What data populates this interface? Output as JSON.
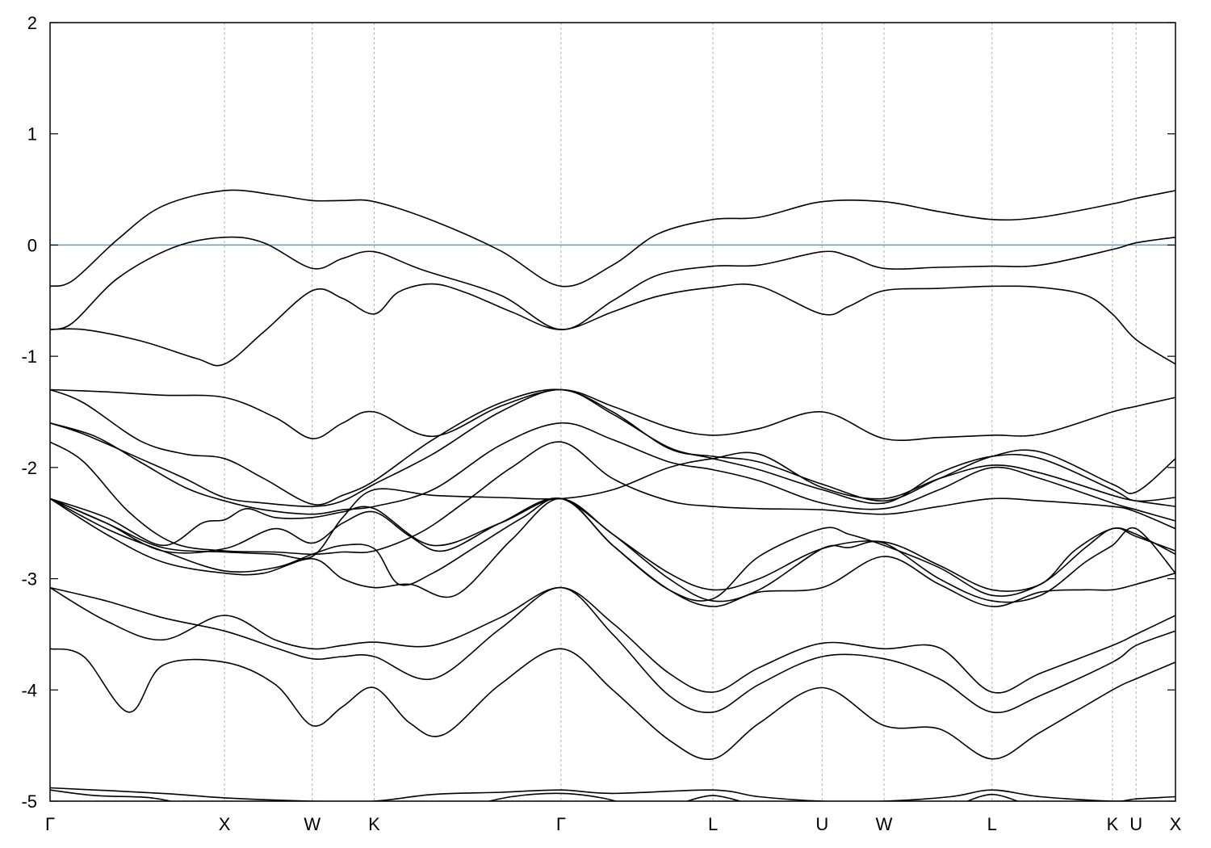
{
  "chart_data": {
    "type": "line",
    "title": "",
    "xlabel": "",
    "ylabel": "",
    "ylim": [
      -5,
      2
    ],
    "yticks": [
      -5,
      -4,
      -3,
      -2,
      -1,
      0,
      1,
      2
    ],
    "ytick_labels": [
      "-5",
      "-4",
      "-3",
      "-2",
      "-1",
      "0",
      "1",
      "2"
    ],
    "xlim": [
      0,
      10
    ],
    "kpoints": [
      {
        "label": "Γ",
        "x": 0.0
      },
      {
        "label": "X",
        "x": 1.55
      },
      {
        "label": "W",
        "x": 2.33
      },
      {
        "label": "K",
        "x": 2.88
      },
      {
        "label": "Γ",
        "x": 4.54
      },
      {
        "label": "L",
        "x": 5.89
      },
      {
        "label": "U",
        "x": 6.86
      },
      {
        "label": "W",
        "x": 7.41
      },
      {
        "label": "L",
        "x": 8.37
      },
      {
        "label": "K",
        "x": 9.44
      },
      {
        "label": "U",
        "x": 9.65
      },
      {
        "label": "X",
        "x": 10.0
      }
    ],
    "reference_line": {
      "y": 0,
      "color": "#4aa8c8"
    },
    "grid": "dashed vertical lines at high-symmetry points",
    "series": [
      {
        "x": [
          0,
          0.2,
          0.6,
          1.0,
          1.55,
          2.0,
          2.33,
          2.6,
          2.88,
          3.4,
          4.0,
          4.54,
          5.0,
          5.4,
          5.89,
          6.3,
          6.86,
          7.41,
          7.9,
          8.37,
          8.8,
          9.44,
          9.65,
          10.0
        ],
        "y": [
          -0.37,
          -0.32,
          0.05,
          0.35,
          0.49,
          0.45,
          0.4,
          0.4,
          0.39,
          0.22,
          -0.05,
          -0.37,
          -0.18,
          0.1,
          0.23,
          0.25,
          0.39,
          0.39,
          0.3,
          0.23,
          0.25,
          0.37,
          0.42,
          0.49
        ]
      },
      {
        "x": [
          0,
          0.2,
          0.6,
          1.1,
          1.55,
          1.9,
          2.33,
          2.6,
          2.88,
          3.3,
          4.0,
          4.54,
          5.0,
          5.4,
          5.89,
          6.3,
          6.86,
          7.1,
          7.41,
          7.9,
          8.37,
          8.8,
          9.44,
          9.65,
          10.0
        ],
        "y": [
          -0.76,
          -0.7,
          -0.3,
          -0.02,
          0.07,
          0.02,
          -0.21,
          -0.12,
          -0.06,
          -0.22,
          -0.45,
          -0.76,
          -0.5,
          -0.27,
          -0.19,
          -0.18,
          -0.06,
          -0.1,
          -0.21,
          -0.2,
          -0.19,
          -0.18,
          -0.04,
          0.02,
          0.07
        ]
      },
      {
        "x": [
          0,
          0.3,
          0.8,
          1.3,
          1.55,
          1.9,
          2.33,
          2.6,
          2.88,
          3.1,
          3.4,
          3.7,
          4.1,
          4.54,
          5.0,
          5.4,
          5.89,
          6.3,
          6.86,
          7.1,
          7.41,
          7.9,
          8.37,
          8.8,
          9.2,
          9.44,
          9.65,
          10.0
        ],
        "y": [
          -0.76,
          -0.76,
          -0.86,
          -1.02,
          -1.07,
          -0.78,
          -0.41,
          -0.48,
          -0.62,
          -0.42,
          -0.35,
          -0.43,
          -0.6,
          -0.76,
          -0.6,
          -0.46,
          -0.38,
          -0.37,
          -0.62,
          -0.55,
          -0.41,
          -0.39,
          -0.37,
          -0.38,
          -0.45,
          -0.62,
          -0.85,
          -1.07
        ]
      },
      {
        "x": [
          0,
          0.5,
          1.0,
          1.55,
          2.0,
          2.33,
          2.6,
          2.88,
          3.4,
          4.0,
          4.54,
          5.0,
          5.5,
          5.89,
          6.3,
          6.86,
          7.41,
          7.9,
          8.37,
          8.8,
          9.44,
          9.65,
          10.0
        ],
        "y": [
          -1.3,
          -1.32,
          -1.35,
          -1.37,
          -1.55,
          -1.74,
          -1.6,
          -1.5,
          -1.72,
          -1.45,
          -1.3,
          -1.45,
          -1.64,
          -1.71,
          -1.65,
          -1.5,
          -1.74,
          -1.73,
          -1.71,
          -1.7,
          -1.5,
          -1.45,
          -1.37
        ]
      },
      {
        "x": [
          0,
          0.3,
          0.8,
          1.2,
          1.55,
          1.9,
          2.33,
          2.6,
          2.88,
          3.4,
          4.0,
          4.54,
          5.0,
          5.5,
          5.89,
          6.3,
          6.86,
          7.41,
          7.9,
          8.37,
          8.8,
          9.44,
          9.65,
          10.0
        ],
        "y": [
          -1.3,
          -1.42,
          -1.76,
          -1.88,
          -1.92,
          -2.1,
          -2.33,
          -2.25,
          -2.12,
          -1.75,
          -1.42,
          -1.3,
          -1.5,
          -1.83,
          -1.9,
          -1.95,
          -2.15,
          -2.3,
          -2.1,
          -1.9,
          -1.86,
          -2.15,
          -2.22,
          -1.92
        ]
      },
      {
        "x": [
          0,
          0.3,
          0.8,
          1.2,
          1.55,
          1.9,
          2.33,
          2.6,
          2.88,
          3.4,
          4.0,
          4.54,
          5.0,
          5.5,
          5.89,
          6.3,
          6.86,
          7.41,
          7.9,
          8.37,
          8.8,
          9.44,
          9.65,
          10.0
        ],
        "y": [
          -1.6,
          -1.7,
          -1.92,
          -2.1,
          -2.27,
          -2.32,
          -2.35,
          -2.3,
          -2.15,
          -1.88,
          -1.5,
          -1.3,
          -1.52,
          -1.82,
          -1.92,
          -2.02,
          -2.2,
          -2.32,
          -2.05,
          -1.9,
          -1.92,
          -2.2,
          -2.3,
          -2.27
        ]
      },
      {
        "x": [
          0,
          0.4,
          0.8,
          1.2,
          1.55,
          1.9,
          2.33,
          2.6,
          2.88,
          3.4,
          4.0,
          4.54,
          5.0,
          5.5,
          5.89,
          6.3,
          6.86,
          7.41,
          7.9,
          8.37,
          8.8,
          9.44,
          9.65,
          10.0
        ],
        "y": [
          -1.6,
          -1.72,
          -1.95,
          -2.18,
          -2.3,
          -2.38,
          -2.42,
          -2.38,
          -2.35,
          -2.2,
          -1.8,
          -1.6,
          -1.75,
          -1.95,
          -2.02,
          -2.12,
          -2.32,
          -2.37,
          -2.2,
          -2.0,
          -2.1,
          -2.32,
          -2.38,
          -2.48
        ]
      },
      {
        "x": [
          0,
          0.3,
          0.7,
          1.1,
          1.55,
          2.0,
          2.33,
          2.6,
          2.88,
          3.3,
          3.7,
          4.1,
          4.54,
          5.0,
          5.5,
          5.89,
          6.3,
          6.86,
          7.41,
          7.9,
          8.37,
          8.8,
          9.44,
          9.65,
          10.0
        ],
        "y": [
          -1.77,
          -1.95,
          -2.4,
          -2.68,
          -2.75,
          -2.76,
          -2.78,
          -2.76,
          -2.75,
          -2.58,
          -2.3,
          -2.0,
          -1.77,
          -2.1,
          -2.3,
          -2.35,
          -2.37,
          -2.38,
          -2.42,
          -2.35,
          -2.28,
          -2.3,
          -2.35,
          -2.4,
          -2.55
        ]
      },
      {
        "x": [
          0,
          0.5,
          1.0,
          1.55,
          2.0,
          2.33,
          2.6,
          2.88,
          3.4,
          4.0,
          4.54,
          5.0,
          5.5,
          5.89,
          6.3,
          6.86,
          7.41,
          7.9,
          8.37,
          8.8,
          9.44,
          9.65,
          10.0
        ],
        "y": [
          -2.28,
          -2.5,
          -2.72,
          -2.76,
          -2.78,
          -2.8,
          -2.45,
          -2.2,
          -2.25,
          -2.27,
          -2.28,
          -2.2,
          -2.0,
          -1.92,
          -1.88,
          -2.18,
          -2.28,
          -2.1,
          -1.98,
          -2.05,
          -2.25,
          -2.3,
          -2.35
        ]
      },
      {
        "x": [
          0,
          0.5,
          1.0,
          1.35,
          1.55,
          1.75,
          2.0,
          2.33,
          2.6,
          2.88,
          3.4,
          4.0,
          4.54,
          5.0,
          5.5,
          5.89,
          6.3,
          6.86,
          7.41,
          7.9,
          8.37,
          8.8,
          9.1,
          9.44,
          9.65,
          10.0
        ],
        "y": [
          -2.28,
          -2.45,
          -2.7,
          -2.5,
          -2.47,
          -2.37,
          -2.45,
          -2.45,
          -2.4,
          -2.37,
          -2.7,
          -2.5,
          -2.28,
          -2.6,
          -2.95,
          -3.1,
          -3.0,
          -2.73,
          -2.67,
          -2.88,
          -3.1,
          -3.05,
          -2.75,
          -2.55,
          -2.62,
          -2.75
        ]
      },
      {
        "x": [
          0,
          0.5,
          1.0,
          1.55,
          2.0,
          2.33,
          2.6,
          2.88,
          3.2,
          3.5,
          4.0,
          4.54,
          5.0,
          5.5,
          5.89,
          6.3,
          6.86,
          7.1,
          7.41,
          7.9,
          8.37,
          8.8,
          9.2,
          9.44,
          9.65,
          10.0
        ],
        "y": [
          -2.28,
          -2.5,
          -2.75,
          -2.73,
          -2.55,
          -2.68,
          -2.5,
          -2.4,
          -2.62,
          -2.75,
          -2.5,
          -2.28,
          -2.7,
          -3.1,
          -3.18,
          -2.8,
          -2.55,
          -2.6,
          -2.7,
          -2.9,
          -3.15,
          -3.05,
          -2.72,
          -2.55,
          -2.6,
          -2.78
        ]
      },
      {
        "x": [
          0,
          0.5,
          1.0,
          1.55,
          2.0,
          2.33,
          2.6,
          2.88,
          3.1,
          3.4,
          3.8,
          4.2,
          4.54,
          5.0,
          5.5,
          5.89,
          6.3,
          6.86,
          7.1,
          7.41,
          7.9,
          8.37,
          8.8,
          9.2,
          9.44,
          9.65,
          10.0
        ],
        "y": [
          -2.28,
          -2.55,
          -2.75,
          -2.93,
          -2.9,
          -2.78,
          -2.7,
          -2.73,
          -3.05,
          -2.95,
          -2.7,
          -2.45,
          -2.28,
          -2.6,
          -3.0,
          -3.2,
          -3.1,
          -2.73,
          -2.72,
          -2.68,
          -3.0,
          -3.2,
          -3.15,
          -2.85,
          -2.7,
          -2.55,
          -2.95
        ]
      },
      {
        "x": [
          0,
          0.5,
          1.0,
          1.55,
          1.9,
          2.33,
          2.6,
          2.88,
          3.2,
          3.6,
          4.1,
          4.54,
          5.0,
          5.5,
          5.89,
          6.3,
          6.86,
          7.41,
          7.9,
          8.37,
          8.8,
          9.2,
          9.44,
          9.65,
          10.0
        ],
        "y": [
          -2.28,
          -2.6,
          -2.85,
          -2.95,
          -2.95,
          -2.82,
          -3.0,
          -3.08,
          -3.05,
          -3.15,
          -2.65,
          -2.28,
          -2.7,
          -3.1,
          -3.25,
          -3.12,
          -3.08,
          -2.8,
          -3.05,
          -3.25,
          -3.12,
          -3.1,
          -3.1,
          -3.05,
          -2.95
        ]
      },
      {
        "x": [
          0,
          0.5,
          1.0,
          1.55,
          2.0,
          2.33,
          2.6,
          2.88,
          3.4,
          4.0,
          4.54,
          5.0,
          5.5,
          5.89,
          6.3,
          6.86,
          7.41,
          7.9,
          8.37,
          8.8,
          9.44,
          9.65,
          10.0
        ],
        "y": [
          -3.08,
          -3.38,
          -3.55,
          -3.33,
          -3.55,
          -3.63,
          -3.6,
          -3.57,
          -3.6,
          -3.35,
          -3.08,
          -3.4,
          -3.85,
          -4.02,
          -3.8,
          -3.58,
          -3.63,
          -3.62,
          -4.02,
          -3.85,
          -3.6,
          -3.5,
          -3.33
        ]
      },
      {
        "x": [
          0,
          0.5,
          1.0,
          1.55,
          2.0,
          2.33,
          2.6,
          2.88,
          3.4,
          4.0,
          4.54,
          5.0,
          5.5,
          5.89,
          6.3,
          6.86,
          7.41,
          7.9,
          8.37,
          8.8,
          9.44,
          9.65,
          10.0
        ],
        "y": [
          -3.08,
          -3.2,
          -3.35,
          -3.47,
          -3.62,
          -3.72,
          -3.7,
          -3.7,
          -3.9,
          -3.45,
          -3.08,
          -3.5,
          -4.05,
          -4.2,
          -3.95,
          -3.7,
          -3.72,
          -3.9,
          -4.2,
          -4.05,
          -3.75,
          -3.6,
          -3.47
        ]
      },
      {
        "x": [
          0,
          0.3,
          0.7,
          1.0,
          1.55,
          2.0,
          2.33,
          2.6,
          2.88,
          3.2,
          3.5,
          4.0,
          4.54,
          5.0,
          5.5,
          5.89,
          6.3,
          6.86,
          7.41,
          7.9,
          8.37,
          8.8,
          9.44,
          9.65,
          10.0
        ],
        "y": [
          -3.63,
          -3.7,
          -4.2,
          -3.78,
          -3.75,
          -3.95,
          -4.32,
          -4.15,
          -3.98,
          -4.3,
          -4.4,
          -3.95,
          -3.63,
          -4.0,
          -4.45,
          -4.62,
          -4.3,
          -3.98,
          -4.32,
          -4.35,
          -4.62,
          -4.38,
          -4.0,
          -3.9,
          -3.75
        ]
      },
      {
        "x": [
          0,
          1.0,
          1.55,
          2.33,
          2.88,
          3.4,
          4.0,
          4.54,
          5.0,
          5.89,
          6.3,
          6.86,
          7.41,
          8.0,
          8.37,
          8.8,
          9.44,
          9.65,
          10.0
        ],
        "y": [
          -4.88,
          -4.93,
          -4.97,
          -5.0,
          -5.0,
          -4.94,
          -4.92,
          -4.9,
          -4.93,
          -4.9,
          -4.96,
          -5.0,
          -5.0,
          -4.96,
          -4.9,
          -4.96,
          -5.0,
          -4.98,
          -4.96
        ]
      },
      {
        "x": [
          0,
          0.4,
          0.9,
          1.3,
          1.55
        ],
        "y": [
          -4.9,
          -4.95,
          -4.97,
          -5.05,
          -5.08
        ]
      },
      {
        "x": [
          3.7,
          4.1,
          4.54,
          4.9,
          5.2
        ],
        "y": [
          -5.05,
          -4.96,
          -4.93,
          -4.97,
          -5.05
        ]
      },
      {
        "x": [
          5.6,
          5.89,
          6.2
        ],
        "y": [
          -5.02,
          -4.95,
          -5.02
        ]
      },
      {
        "x": [
          8.1,
          8.37,
          8.65
        ],
        "y": [
          -5.02,
          -4.94,
          -5.02
        ]
      }
    ]
  }
}
